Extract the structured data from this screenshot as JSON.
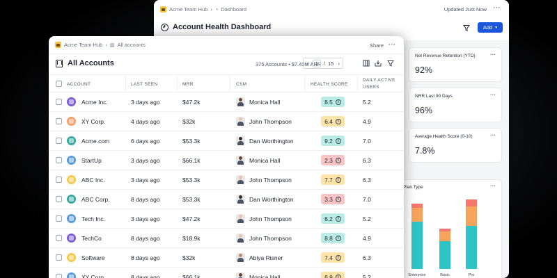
{
  "back_window": {
    "breadcrumb": {
      "hub": "Acme Team Hub",
      "page": "Dashboard"
    },
    "updated": "Updated Just Now",
    "title": "Account Health Dashboard",
    "add_label": "Add",
    "metrics": [
      {
        "label": "Net Revenue Retention (YTD)",
        "value": "92%"
      },
      {
        "label": "NRR Last 90 Days",
        "value": "96%"
      },
      {
        "label": "Average Health Score (0-10)",
        "value": "7.8%"
      }
    ]
  },
  "chart_data": {
    "type": "bar",
    "title": "Plan Type",
    "categories": [
      "Enterprise",
      "Basic",
      "Pro"
    ],
    "series": [
      {
        "values": [
          68,
          40,
          62
        ]
      },
      {
        "values": [
          20,
          14,
          28
        ]
      },
      {
        "values": [
          6,
          4,
          10
        ]
      }
    ],
    "colors": [
      "#2ec4c6",
      "#f7a35c",
      "#f5776e"
    ]
  },
  "front_window": {
    "breadcrumb": {
      "hub": "Acme Team Hub",
      "page": "All accounts"
    },
    "share_label": "Share",
    "title": "All Accounts",
    "summary": "375 Accounts • $7.43M ARR",
    "pager": {
      "current": "1",
      "separator": "/",
      "total": "15"
    },
    "columns": {
      "account": "ACCOUNT",
      "last_seen": "LAST SEEN",
      "mrr": "MRR",
      "csm": "CSM",
      "health": "HEALTH SCORE",
      "dau": "DAILY ACTIVE USERS"
    },
    "rows": [
      {
        "account": "Acme Inc.",
        "avatar_color": "#7c5cd6",
        "last_seen": "3 days ago",
        "mrr": "$47.2k",
        "csm": "Monica Hall",
        "csm_skin": "#6b4a34",
        "health": "8.5",
        "health_level": "good",
        "dau": "5.2"
      },
      {
        "account": "XY Corp.",
        "avatar_color": "#f59e6b",
        "last_seen": "4 days ago",
        "mrr": "$32k",
        "csm": "John Thompson",
        "csm_skin": "#e8c4a6",
        "health": "6.4",
        "health_level": "mid",
        "dau": "4.9"
      },
      {
        "account": "Acme.com",
        "avatar_color": "#3aa8a0",
        "last_seen": "6 days ago",
        "mrr": "$53.3k",
        "csm": "Dan Worthington",
        "csm_skin": "#3d2b21",
        "health": "9.2",
        "health_level": "good",
        "dau": "7.0"
      },
      {
        "account": "StartUp",
        "avatar_color": "#5b9bd5",
        "last_seen": "3 days ago",
        "mrr": "$66.1k",
        "csm": "Monica Hall",
        "csm_skin": "#6b4a34",
        "health": "2.3",
        "health_level": "bad",
        "dau": "6.3"
      },
      {
        "account": "ABC Inc.",
        "avatar_color": "#f2c94c",
        "last_seen": "3 days ago",
        "mrr": "$53.3k",
        "csm": "John Thompson",
        "csm_skin": "#e8c4a6",
        "health": "7.7",
        "health_level": "mid",
        "dau": "6.3"
      },
      {
        "account": "ABC Corp.",
        "avatar_color": "#3aa8a0",
        "last_seen": "8 days ago",
        "mrr": "$53.3k",
        "csm": "Dan Worthington",
        "csm_skin": "#3d2b21",
        "health": "3.3",
        "health_level": "bad",
        "dau": "7.0"
      },
      {
        "account": "Tech Inc.",
        "avatar_color": "#5b9bd5",
        "last_seen": "3 days ago",
        "mrr": "$47.2k",
        "csm": "John Thompson",
        "csm_skin": "#e8c4a6",
        "health": "8.2",
        "health_level": "good",
        "dau": "5.2"
      },
      {
        "account": "TechCo",
        "avatar_color": "#7c5cd6",
        "last_seen": "8 days ago",
        "mrr": "$18.9k",
        "csm": "John Thompson",
        "csm_skin": "#e8c4a6",
        "health": "8.8",
        "health_level": "good",
        "dau": "4.9"
      },
      {
        "account": "Software",
        "avatar_color": "#f2c94c",
        "last_seen": "8 days ago",
        "mrr": "$32k",
        "csm": "Abiya Risner",
        "csm_skin": "#b98b66",
        "health": "7.4",
        "health_level": "mid",
        "dau": "6.3"
      },
      {
        "account": "XY Corp.",
        "avatar_color": "#5b9bd5",
        "last_seen": "8 days ago",
        "mrr": "$66.1k",
        "csm": "Monica Hall",
        "csm_skin": "#6b4a34",
        "health": "6.9",
        "health_level": "mid",
        "dau": "5.2"
      }
    ]
  },
  "colors": {
    "accent": "#1a56db",
    "health_good": "#b8ece4",
    "health_mid": "#fde3a7",
    "health_bad": "#f9c4c4"
  }
}
